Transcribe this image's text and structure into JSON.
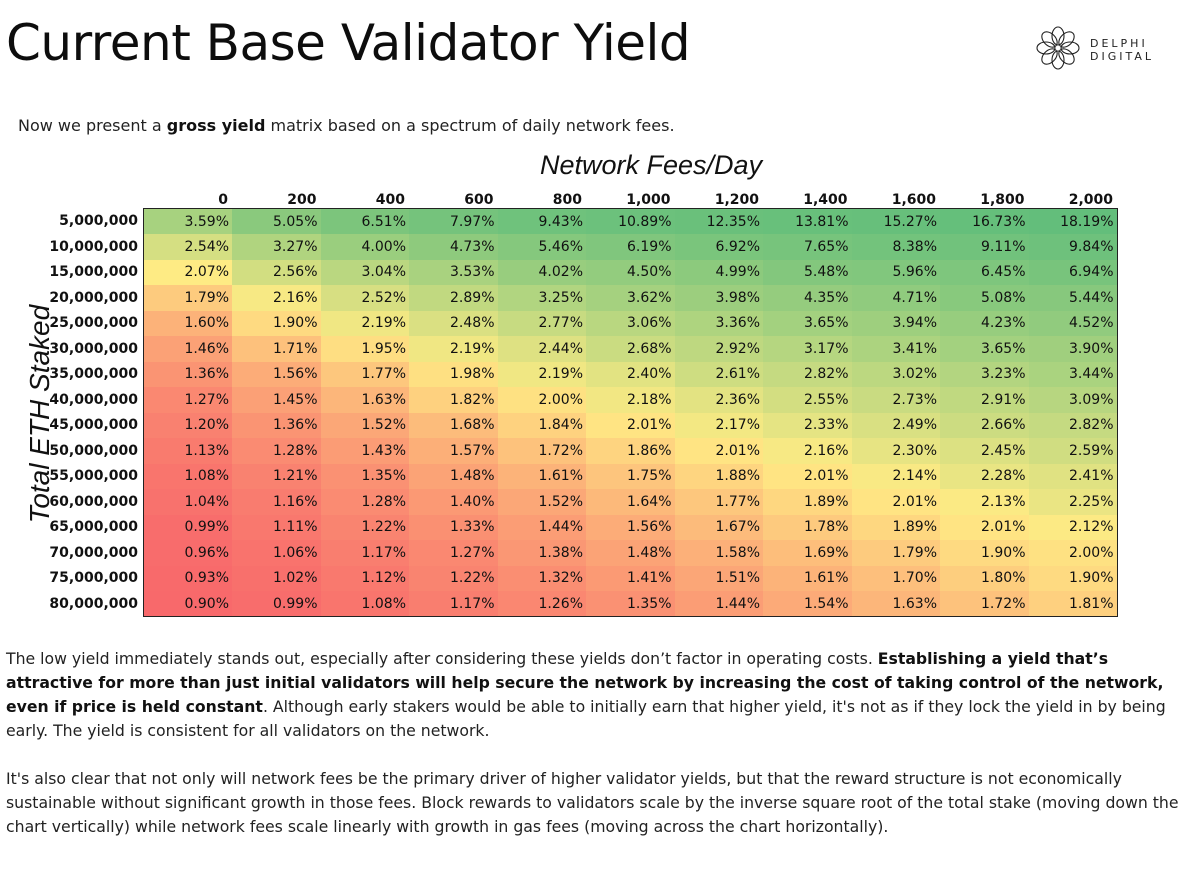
{
  "header": {
    "title": "Current Base Validator Yield",
    "brand": "DELPHI DIGITAL",
    "logo_icon": "delphi-flower-icon"
  },
  "intro": {
    "before": "Now we present a ",
    "bold": "gross yield",
    "after": " matrix based on a spectrum of daily network fees."
  },
  "table": {
    "col_title": "Network Fees/Day",
    "row_title": "Total ETH Staked",
    "columns": [
      "0",
      "200",
      "400",
      "600",
      "800",
      "1,000",
      "1,200",
      "1,400",
      "1,600",
      "1,800",
      "2,000"
    ],
    "rows": [
      {
        "label": "5,000,000",
        "values": [
          "3.59%",
          "5.05%",
          "6.51%",
          "7.97%",
          "9.43%",
          "10.89%",
          "12.35%",
          "13.81%",
          "15.27%",
          "16.73%",
          "18.19%"
        ]
      },
      {
        "label": "10,000,000",
        "values": [
          "2.54%",
          "3.27%",
          "4.00%",
          "4.73%",
          "5.46%",
          "6.19%",
          "6.92%",
          "7.65%",
          "8.38%",
          "9.11%",
          "9.84%"
        ]
      },
      {
        "label": "15,000,000",
        "values": [
          "2.07%",
          "2.56%",
          "3.04%",
          "3.53%",
          "4.02%",
          "4.50%",
          "4.99%",
          "5.48%",
          "5.96%",
          "6.45%",
          "6.94%"
        ]
      },
      {
        "label": "20,000,000",
        "values": [
          "1.79%",
          "2.16%",
          "2.52%",
          "2.89%",
          "3.25%",
          "3.62%",
          "3.98%",
          "4.35%",
          "4.71%",
          "5.08%",
          "5.44%"
        ]
      },
      {
        "label": "25,000,000",
        "values": [
          "1.60%",
          "1.90%",
          "2.19%",
          "2.48%",
          "2.77%",
          "3.06%",
          "3.36%",
          "3.65%",
          "3.94%",
          "4.23%",
          "4.52%"
        ]
      },
      {
        "label": "30,000,000",
        "values": [
          "1.46%",
          "1.71%",
          "1.95%",
          "2.19%",
          "2.44%",
          "2.68%",
          "2.92%",
          "3.17%",
          "3.41%",
          "3.65%",
          "3.90%"
        ]
      },
      {
        "label": "35,000,000",
        "values": [
          "1.36%",
          "1.56%",
          "1.77%",
          "1.98%",
          "2.19%",
          "2.40%",
          "2.61%",
          "2.82%",
          "3.02%",
          "3.23%",
          "3.44%"
        ]
      },
      {
        "label": "40,000,000",
        "values": [
          "1.27%",
          "1.45%",
          "1.63%",
          "1.82%",
          "2.00%",
          "2.18%",
          "2.36%",
          "2.55%",
          "2.73%",
          "2.91%",
          "3.09%"
        ]
      },
      {
        "label": "45,000,000",
        "values": [
          "1.20%",
          "1.36%",
          "1.52%",
          "1.68%",
          "1.84%",
          "2.01%",
          "2.17%",
          "2.33%",
          "2.49%",
          "2.66%",
          "2.82%"
        ]
      },
      {
        "label": "50,000,000",
        "values": [
          "1.13%",
          "1.28%",
          "1.43%",
          "1.57%",
          "1.72%",
          "1.86%",
          "2.01%",
          "2.16%",
          "2.30%",
          "2.45%",
          "2.59%"
        ]
      },
      {
        "label": "55,000,000",
        "values": [
          "1.08%",
          "1.21%",
          "1.35%",
          "1.48%",
          "1.61%",
          "1.75%",
          "1.88%",
          "2.01%",
          "2.14%",
          "2.28%",
          "2.41%"
        ]
      },
      {
        "label": "60,000,000",
        "values": [
          "1.04%",
          "1.16%",
          "1.28%",
          "1.40%",
          "1.52%",
          "1.64%",
          "1.77%",
          "1.89%",
          "2.01%",
          "2.13%",
          "2.25%"
        ]
      },
      {
        "label": "65,000,000",
        "values": [
          "0.99%",
          "1.11%",
          "1.22%",
          "1.33%",
          "1.44%",
          "1.56%",
          "1.67%",
          "1.78%",
          "1.89%",
          "2.01%",
          "2.12%"
        ]
      },
      {
        "label": "70,000,000",
        "values": [
          "0.96%",
          "1.06%",
          "1.17%",
          "1.27%",
          "1.38%",
          "1.48%",
          "1.58%",
          "1.69%",
          "1.79%",
          "1.90%",
          "2.00%"
        ]
      },
      {
        "label": "75,000,000",
        "values": [
          "0.93%",
          "1.02%",
          "1.12%",
          "1.22%",
          "1.32%",
          "1.41%",
          "1.51%",
          "1.61%",
          "1.70%",
          "1.80%",
          "1.90%"
        ]
      },
      {
        "label": "80,000,000",
        "values": [
          "0.90%",
          "0.99%",
          "1.08%",
          "1.17%",
          "1.26%",
          "1.35%",
          "1.44%",
          "1.54%",
          "1.63%",
          "1.72%",
          "1.81%"
        ]
      }
    ],
    "colors": {
      "low": "#f8696b",
      "mid": "#ffeb84",
      "high": "#63be7b"
    }
  },
  "paragraph1": {
    "part1": "The low yield immediately stands out, especially after considering these yields don’t factor in operating costs. ",
    "bold": "Establishing a yield that’s attractive for more than just initial validators will help secure the network by increasing the cost of taking control of the network, even if price is held constant",
    "part2": ". Although early stakers would be able to initially earn that higher yield, it's not as if they lock the yield in by being early. The yield is consistent for all validators on the network."
  },
  "paragraph2": {
    "text": "It's also clear that not only will network fees be the primary driver of higher validator yields, but that the reward structure is not economically sustainable without significant growth in those fees. Block rewards to validators scale by the inverse square root of the total stake (moving down the chart vertically) while network fees scale linearly with growth in gas fees (moving across the chart horizontally)."
  }
}
